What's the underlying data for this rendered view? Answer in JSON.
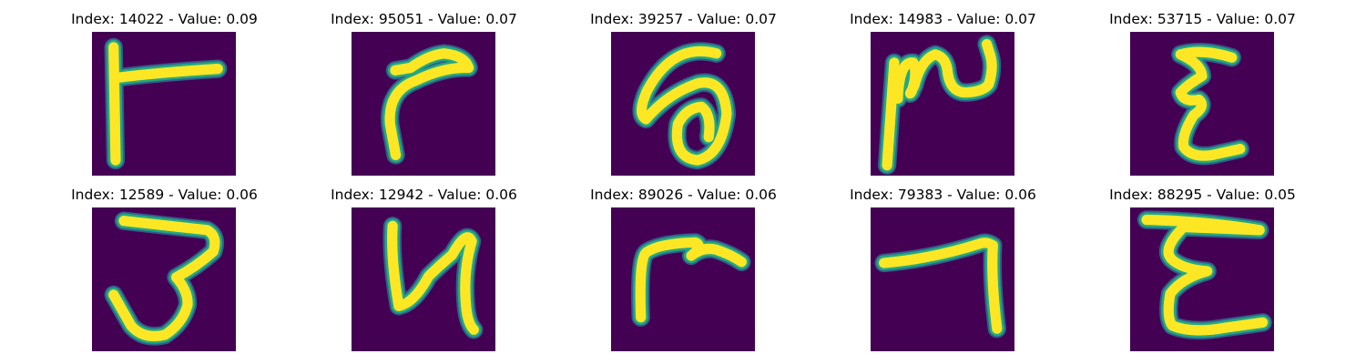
{
  "colors": {
    "background": "#ffffff",
    "image_background": "#440154",
    "stroke_core": "#fde725",
    "stroke_edge": "#22a884",
    "stroke_outer": "#31688e",
    "title_text": "#000000"
  },
  "panels": [
    {
      "title": "Index: 14022 - Value: 0.09",
      "glyph": "stroke shaped like a sideways T (vertical bar with arm to the right)"
    },
    {
      "title": "Index: 95051 - Value: 0.07",
      "glyph": "curved hook stroke"
    },
    {
      "title": "Index: 39257 - Value: 0.07",
      "glyph": "looped stroke resembling an @ sign"
    },
    {
      "title": "Index: 14983 - Value: 0.07",
      "glyph": "vertical line with wavy stroke to the right"
    },
    {
      "title": "Index: 53715 - Value: 0.07",
      "glyph": "stroke resembling the letter ε"
    },
    {
      "title": "Index: 12589 - Value: 0.06",
      "glyph": "stroke resembling the digit 3"
    },
    {
      "title": "Index: 12942 - Value: 0.06",
      "glyph": "stroke resembling the letter N"
    },
    {
      "title": "Index: 89026 - Value: 0.06",
      "glyph": "stroke resembling the letter r"
    },
    {
      "title": "Index: 79383 - Value: 0.06",
      "glyph": "stroke resembling the digit 7"
    },
    {
      "title": "Index: 88295 - Value: 0.05",
      "glyph": "stroke resembling the letter E / ε"
    }
  ]
}
